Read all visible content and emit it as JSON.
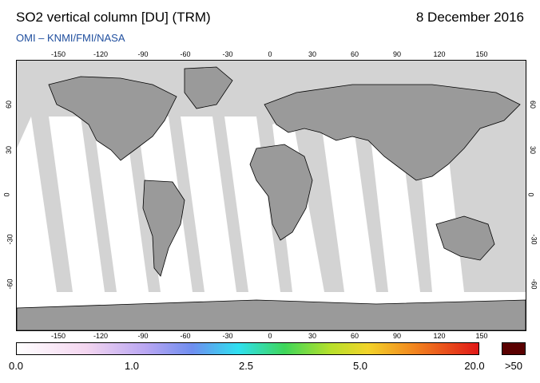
{
  "header": {
    "title": "SO2 vertical column [DU] (TRM)",
    "date": "8 December 2016",
    "credit": "OMI  –  KNMI/FMI/NASA"
  },
  "map": {
    "projection": "equirectangular",
    "lon_range": [
      -180,
      180
    ],
    "lat_range": [
      -90,
      90
    ],
    "lon_ticks": [
      "-150",
      "-120",
      "-90",
      "-60",
      "-30",
      "0",
      "30",
      "60",
      "90",
      "120",
      "150"
    ],
    "lat_ticks": [
      "60",
      "30",
      "0",
      "-30",
      "-60"
    ],
    "colors": {
      "land": "#9a9a9a",
      "swath_coverage": "#ffffff",
      "no_data": "#d3d3d3",
      "coastline": "#000000"
    }
  },
  "colorbar": {
    "labels": [
      "0.0",
      "1.0",
      "2.5",
      "5.0",
      "20.0",
      ">50"
    ],
    "label_values": [
      0.0,
      1.0,
      2.5,
      5.0,
      20.0
    ],
    "overmax_color": "#5a0000"
  }
}
